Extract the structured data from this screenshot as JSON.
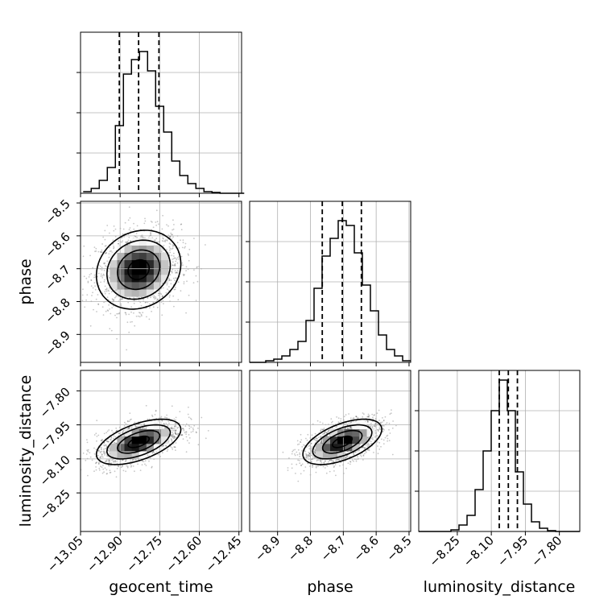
{
  "chart_data": {
    "type": "corner",
    "parameters": [
      "geocent_time",
      "phase",
      "luminosity_distance"
    ],
    "axis_labels": {
      "geocent_time": "geocent_time",
      "phase": "phase",
      "luminosity_distance": "luminosity_distance"
    },
    "ranges": {
      "geocent_time": [
        -13.05,
        -12.44
      ],
      "phase": [
        -8.985,
        -8.495
      ],
      "luminosity_distance": [
        -8.42,
        -7.71
      ]
    },
    "ticks": {
      "geocent_time": [
        -13.05,
        -12.9,
        -12.75,
        -12.6,
        -12.45
      ],
      "phase": [
        -8.9,
        -8.8,
        -8.7,
        -8.6,
        -8.5
      ],
      "luminosity_distance": [
        -8.25,
        -8.1,
        -7.95,
        -7.8
      ]
    },
    "tick_labels": {
      "geocent_time": [
        "−13.05",
        "−12.90",
        "−12.75",
        "−12.60",
        "−12.45"
      ],
      "phase": [
        "−8.9",
        "−8.8",
        "−8.7",
        "−8.6",
        "−8.5"
      ],
      "luminosity_distance": [
        "−8.25",
        "−8.10",
        "−7.95",
        "−7.80"
      ]
    },
    "quantiles": {
      "geocent_time": [
        -12.903,
        -12.83,
        -12.753
      ],
      "phase": [
        -8.764,
        -8.703,
        -8.645
      ],
      "luminosity_distance": [
        -8.065,
        -8.025,
        -7.985
      ]
    },
    "histograms": {
      "geocent_time": {
        "bin_start": -13.04,
        "bin_width": 0.0305,
        "counts": [
          0.01,
          0.03,
          0.08,
          0.16,
          0.42,
          0.74,
          0.83,
          0.88,
          0.76,
          0.54,
          0.38,
          0.2,
          0.11,
          0.06,
          0.03,
          0.01,
          0.005,
          0,
          0,
          0
        ]
      },
      "phase": {
        "bin_start": -8.985,
        "bin_width": 0.0245,
        "counts": [
          0,
          0,
          0.01,
          0.02,
          0.04,
          0.08,
          0.13,
          0.26,
          0.46,
          0.66,
          0.77,
          0.88,
          0.85,
          0.68,
          0.48,
          0.32,
          0.17,
          0.08,
          0.04,
          0.01
        ]
      },
      "luminosity_distance": {
        "bin_start": -8.42,
        "bin_width": 0.0355,
        "counts": [
          0,
          0,
          0,
          0,
          0.01,
          0.04,
          0.1,
          0.26,
          0.5,
          0.75,
          0.94,
          0.75,
          0.37,
          0.17,
          0.06,
          0.02,
          0.005,
          0,
          0,
          0
        ]
      }
    },
    "pairs": [
      {
        "x": "geocent_time",
        "y": "phase",
        "mean": [
          -12.83,
          -8.703
        ],
        "sigma": [
          0.08,
          0.06
        ],
        "correlation": 0.15
      },
      {
        "x": "geocent_time",
        "y": "luminosity_distance",
        "mean": [
          -12.83,
          -8.025
        ],
        "sigma": [
          0.08,
          0.05
        ],
        "correlation": 0.55
      },
      {
        "x": "phase",
        "y": "luminosity_distance",
        "mean": [
          -8.703,
          -8.025
        ],
        "sigma": [
          0.06,
          0.05
        ],
        "correlation": 0.55
      }
    ],
    "contour_levels_sigma": [
      0.5,
      1.0,
      1.5,
      2.0
    ],
    "grid": true,
    "colors": {
      "line": "#000000",
      "grid": "#b0b0b0",
      "points": "#000000",
      "frame": "#000000"
    }
  }
}
